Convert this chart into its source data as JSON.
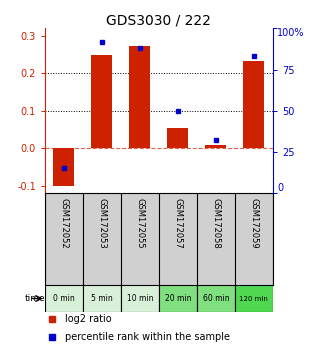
{
  "title": "GDS3030 / 222",
  "categories": [
    "GSM172052",
    "GSM172053",
    "GSM172055",
    "GSM172057",
    "GSM172058",
    "GSM172059"
  ],
  "time_labels": [
    "0 min",
    "5 min",
    "10 min",
    "20 min",
    "60 min",
    "120 min"
  ],
  "log2_ratio": [
    -0.102,
    0.248,
    0.272,
    0.053,
    0.008,
    0.232
  ],
  "percentile_rank": [
    15,
    92,
    88,
    50,
    32,
    83
  ],
  "ylim": [
    -0.12,
    0.32
  ],
  "yticks_left": [
    -0.1,
    0.0,
    0.1,
    0.2,
    0.3
  ],
  "yticks_right": [
    0,
    25,
    50,
    75,
    100
  ],
  "bar_color": "#cc2200",
  "dot_color": "#0000cc",
  "zero_line_color": "#cc2200",
  "dotted_line_color": "#000000",
  "bg_color": "#ffffff",
  "cell_bg": "#d0d0d0",
  "time_bg_colors": [
    "#d8f0d8",
    "#d8f0d8",
    "#d8f0d8",
    "#80e080",
    "#80e080",
    "#50d850"
  ],
  "title_fontsize": 10,
  "tick_fontsize": 7,
  "legend_fontsize": 7
}
